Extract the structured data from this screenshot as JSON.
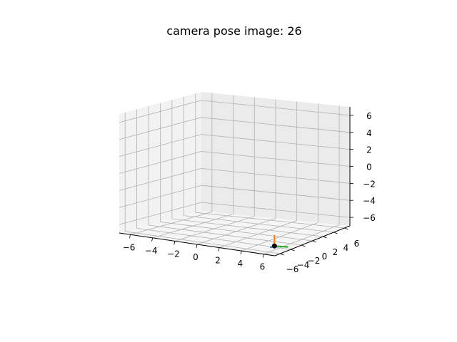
{
  "chart_data": {
    "type": "3d-axes",
    "title": "camera pose image: 26",
    "xlim": [
      -7,
      7
    ],
    "ylim": [
      -7,
      7
    ],
    "zlim": [
      -7,
      7
    ],
    "x_ticks": [
      -6,
      -4,
      -2,
      0,
      2,
      4,
      6
    ],
    "y_ticks": [
      -6,
      -4,
      -2,
      0,
      2,
      4,
      6
    ],
    "z_ticks": [
      -6,
      -4,
      -2,
      0,
      2,
      4,
      6
    ],
    "x_tick_labels": [
      "−6",
      "−4",
      "−2",
      "0",
      "2",
      "4",
      "6"
    ],
    "y_tick_labels": [
      "−6",
      "−4",
      "−2",
      "0",
      "2",
      "4",
      "6"
    ],
    "z_tick_labels": [
      "−6",
      "−4",
      "−2",
      "0",
      "2",
      "4",
      "6"
    ],
    "grid": true,
    "camera": {
      "position": [
        5.3,
        -3.6,
        -7
      ],
      "axes": [
        {
          "name": "x",
          "color": "#1f77b4",
          "direction": [
            0,
            -0.8,
            0
          ]
        },
        {
          "name": "y",
          "color": "#ff7f0e",
          "direction": [
            0,
            0,
            1.3
          ]
        },
        {
          "name": "z",
          "color": "#2ca02c",
          "direction": [
            1.1,
            0.3,
            0
          ]
        }
      ],
      "center_color": "#000000"
    }
  }
}
